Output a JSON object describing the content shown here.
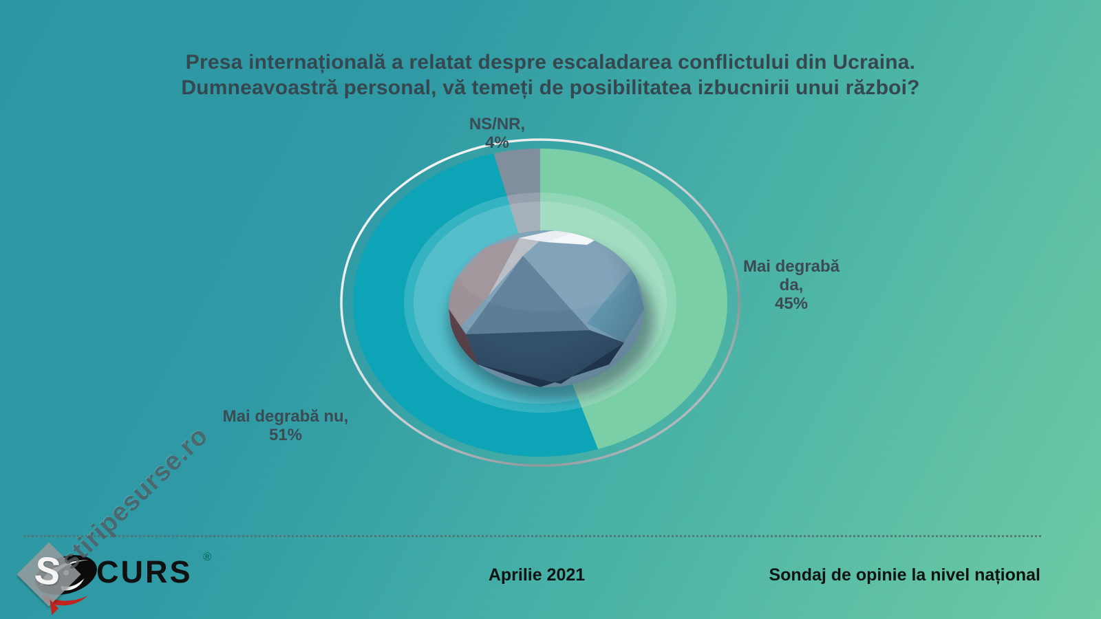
{
  "title": {
    "line1": "Presa internațională a relatat despre escaladarea conflictului din Ucraina.",
    "line2": "Dumneavoastră personal, vă temeți de posibilitatea izbucnirii unui război?"
  },
  "chart_data": {
    "type": "pie",
    "title": "Presa internațională a relatat despre escaladarea conflictului din Ucraina. Dumneavoastră personal, vă temeți de posibilitatea izbucnirii unui război?",
    "start_angle_deg": 0,
    "direction": "clockwise",
    "series": [
      {
        "id": "mai-degraba-da",
        "label": "Mai degrabă da",
        "value": 45,
        "color": "#7BCFA6"
      },
      {
        "id": "mai-degraba-nu",
        "label": "Mai degrabă nu",
        "value": 51,
        "color": "#0CA4B6"
      },
      {
        "id": "ns-nr",
        "label": "NS/NR",
        "value": 4,
        "color": "#818E9D"
      }
    ],
    "callouts": {
      "ns": {
        "lines": [
          "NS/NR,",
          "4%"
        ]
      },
      "da": {
        "lines": [
          "Mai degrabă",
          "da,",
          "45%"
        ]
      },
      "nu": {
        "lines": [
          "Mai degrabă nu,",
          "51%"
        ]
      }
    },
    "center_decoration": "faceted-gem-graphic",
    "outer_ring_color": "#c9ced2"
  },
  "footer": {
    "brand": "CURS",
    "registered": "®",
    "date": "Aprilie 2021",
    "note": "Sondaj de opinie la nivel național"
  },
  "watermark": {
    "logo_letter": "S",
    "text": "stiripesurse.ro"
  },
  "colors": {
    "background_top_left": "#2d96a3",
    "background_bottom_right": "#6ecaa3",
    "title_text": "#36474f",
    "label_text": "#3b4a53",
    "footer_text": "#0d1412",
    "registered_mark": "#0d6e66"
  }
}
